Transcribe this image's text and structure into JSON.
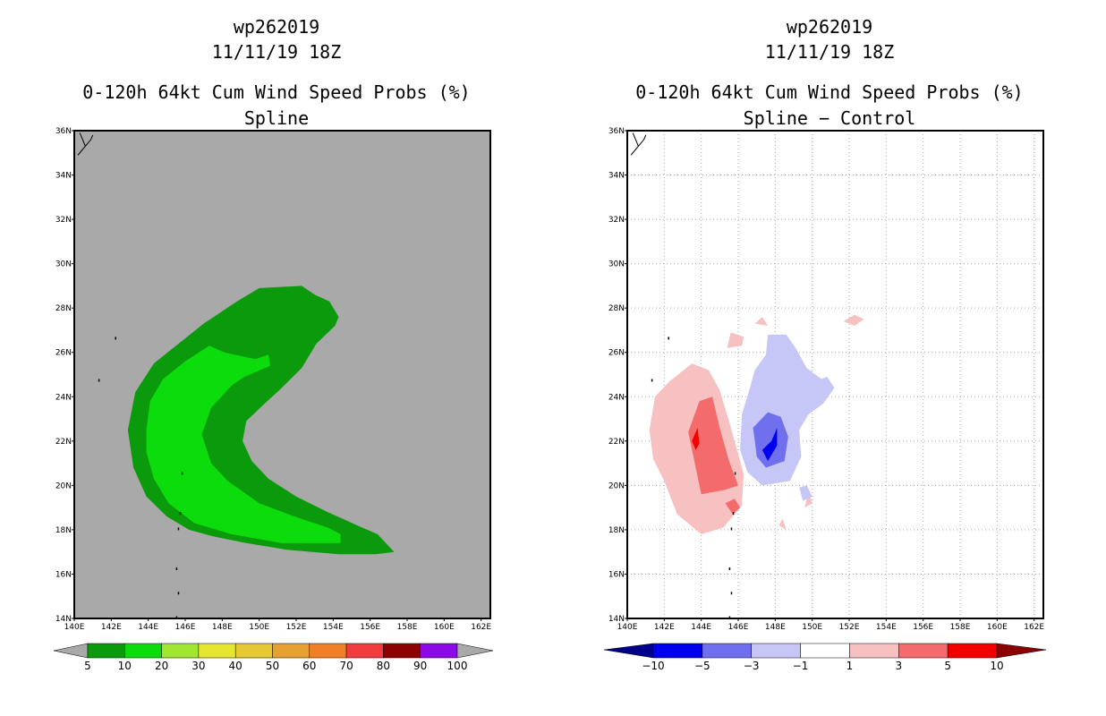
{
  "colors": {
    "land_gray": "#a9a9a9",
    "prob_5": "#0b9a0b",
    "prob_10": "#0cdc0c",
    "diff_pos1": "#f7c1c1",
    "diff_pos3": "#f46b6b",
    "diff_pos5": "#f20000",
    "diff_neg1": "#c6c6f7",
    "diff_neg3": "#7070ef",
    "diff_neg5": "#0000ee"
  },
  "panels": [
    {
      "id": "left",
      "title_line1": "wp262019",
      "title_line2": "11/11/19 18Z",
      "title_line3": "0-120h 64kt Cum Wind Speed Probs (%)",
      "title_line4": "Spline"
    },
    {
      "id": "right",
      "title_line1": "wp262019",
      "title_line2": "11/11/19 18Z",
      "title_line3": "0-120h 64kt Cum Wind Speed Probs (%)",
      "title_line4": "Spline − Control"
    }
  ],
  "chart_data": [
    {
      "type": "contour_map",
      "title": "wp262019 11/11/19 18Z 0-120h 64kt Cum Wind Speed Probs (%) Spline",
      "x_range_lon": [
        140,
        162.5
      ],
      "y_range_lat": [
        14,
        36
      ],
      "x_ticks": [
        "140E",
        "142E",
        "144E",
        "146E",
        "148E",
        "150E",
        "152E",
        "154E",
        "156E",
        "158E",
        "160E",
        "162E"
      ],
      "y_ticks": [
        "14N",
        "16N",
        "18N",
        "20N",
        "22N",
        "24N",
        "26N",
        "28N",
        "30N",
        "32N",
        "34N",
        "36N"
      ],
      "grid": false,
      "colorbar": {
        "labels": [
          "5",
          "10",
          "20",
          "30",
          "40",
          "50",
          "60",
          "70",
          "80",
          "90",
          "100"
        ],
        "colors": [
          "#a9a9a9",
          "#0b9a0b",
          "#0cdc0c",
          "#a0e632",
          "#e6e632",
          "#e6c832",
          "#e6a032",
          "#f08028",
          "#f03c3c",
          "#8c0000",
          "#8c0ae6",
          "#a9a9a9"
        ]
      },
      "contours": [
        {
          "level": 5,
          "points": [
            [
              142.9,
              22.5
            ],
            [
              143.3,
              24.2
            ],
            [
              144.3,
              25.5
            ],
            [
              145.5,
              26.3
            ],
            [
              147,
              27.3
            ],
            [
              148.8,
              28.3
            ],
            [
              150,
              28.9
            ],
            [
              152.3,
              29
            ],
            [
              153,
              28.6
            ],
            [
              153.8,
              28.3
            ],
            [
              154.3,
              27.6
            ],
            [
              154.1,
              27.2
            ],
            [
              153.1,
              26.4
            ],
            [
              152.3,
              25.3
            ],
            [
              151.1,
              24.3
            ],
            [
              150.3,
              23.7
            ],
            [
              149.3,
              22.9
            ],
            [
              149.1,
              22
            ],
            [
              149.6,
              21.1
            ],
            [
              150.5,
              20.3
            ],
            [
              152,
              19.5
            ],
            [
              153.7,
              18.8
            ],
            [
              155.3,
              18.2
            ],
            [
              156.4,
              17.8
            ],
            [
              157.3,
              17
            ],
            [
              156.3,
              16.9
            ],
            [
              154.3,
              16.9
            ],
            [
              151.5,
              17.1
            ],
            [
              149.3,
              17.4
            ],
            [
              147.5,
              17.7
            ],
            [
              146.2,
              18
            ],
            [
              145,
              18.6
            ],
            [
              143.9,
              19.5
            ],
            [
              143.2,
              20.8
            ]
          ]
        },
        {
          "level": 10,
          "points": [
            [
              143.9,
              22.5
            ],
            [
              144.1,
              23.8
            ],
            [
              144.8,
              24.8
            ],
            [
              146,
              25.6
            ],
            [
              147.3,
              26.3
            ],
            [
              148.1,
              26
            ],
            [
              149.8,
              25.7
            ],
            [
              150.5,
              25.9
            ],
            [
              150.6,
              25.4
            ],
            [
              149.2,
              24.9
            ],
            [
              148.5,
              24.5
            ],
            [
              147.4,
              23.5
            ],
            [
              146.9,
              22.3
            ],
            [
              147.4,
              21
            ],
            [
              148.3,
              20.2
            ],
            [
              150,
              19.2
            ],
            [
              151.9,
              18.6
            ],
            [
              153.7,
              18.1
            ],
            [
              154.4,
              17.8
            ],
            [
              154.4,
              17.4
            ],
            [
              151.2,
              17.4
            ],
            [
              148.5,
              17.8
            ],
            [
              146.5,
              18.3
            ],
            [
              145.1,
              19.2
            ],
            [
              144.3,
              20.3
            ],
            [
              143.9,
              21.5
            ]
          ]
        }
      ]
    },
    {
      "type": "contour_map",
      "title": "wp262019 11/11/19 18Z 0-120h 64kt Cum Wind Speed Probs (%) Spline − Control",
      "x_range_lon": [
        140,
        162.5
      ],
      "y_range_lat": [
        14,
        36
      ],
      "x_ticks": [
        "140E",
        "142E",
        "144E",
        "146E",
        "148E",
        "150E",
        "152E",
        "154E",
        "156E",
        "158E",
        "160E",
        "162E"
      ],
      "y_ticks": [
        "14N",
        "16N",
        "18N",
        "20N",
        "22N",
        "24N",
        "26N",
        "28N",
        "30N",
        "32N",
        "34N",
        "36N"
      ],
      "grid": true,
      "colorbar": {
        "labels": [
          "−10",
          "−5",
          "−3",
          "−1",
          "1",
          "3",
          "5",
          "10"
        ],
        "colors": [
          "#00008b",
          "#0000ee",
          "#7070ef",
          "#c6c6f7",
          "#ffffff",
          "#f7c1c1",
          "#f46b6b",
          "#f20000",
          "#8b0000"
        ]
      },
      "contours": [
        {
          "level": 1,
          "points": [
            [
              141.2,
              22.5
            ],
            [
              141.5,
              24
            ],
            [
              142.3,
              24.7
            ],
            [
              143.5,
              25.5
            ],
            [
              144.4,
              25.2
            ],
            [
              145,
              24.3
            ],
            [
              145.5,
              22.9
            ],
            [
              146.3,
              20.5
            ],
            [
              146.2,
              19.1
            ],
            [
              145.2,
              18.1
            ],
            [
              144,
              17.8
            ],
            [
              142.7,
              18.7
            ],
            [
              142,
              20.2
            ],
            [
              141.4,
              21.2
            ]
          ]
        },
        {
          "level": 3,
          "points": [
            [
              143.3,
              22.4
            ],
            [
              143.9,
              23.8
            ],
            [
              144.6,
              24
            ],
            [
              145,
              22.6
            ],
            [
              145.5,
              21.1
            ],
            [
              146,
              20
            ],
            [
              145.3,
              19.8
            ],
            [
              144,
              19.6
            ],
            [
              143.7,
              20.8
            ]
          ]
        },
        {
          "level": 5,
          "points": [
            [
              143.5,
              22
            ],
            [
              143.8,
              22.6
            ],
            [
              143.9,
              21.9
            ],
            [
              143.7,
              21.6
            ]
          ]
        },
        {
          "level": 3,
          "points": [
            [
              145.3,
              19.2
            ],
            [
              145.8,
              19.4
            ],
            [
              146.1,
              19
            ],
            [
              145.7,
              18.7
            ]
          ]
        },
        {
          "level": 1,
          "points": [
            [
              145.4,
              26.2
            ],
            [
              145.6,
              26.9
            ],
            [
              146.3,
              26.7
            ],
            [
              146.2,
              26.3
            ]
          ]
        },
        {
          "level": 1,
          "points": [
            [
              146.9,
              27.3
            ],
            [
              147.3,
              27.6
            ],
            [
              147.6,
              27.2
            ]
          ]
        },
        {
          "level": 1,
          "points": [
            [
              151.7,
              27.4
            ],
            [
              152.3,
              27.7
            ],
            [
              152.8,
              27.5
            ],
            [
              152.3,
              27.2
            ]
          ]
        },
        {
          "level": 1,
          "points": [
            [
              148.2,
              18.2
            ],
            [
              148.4,
              18.5
            ],
            [
              148.6,
              18
            ]
          ]
        },
        {
          "level": 1,
          "points": [
            [
              149.8,
              19.8
            ],
            [
              150,
              19.2
            ],
            [
              149.6,
              19
            ]
          ]
        },
        {
          "level": -1,
          "points": [
            [
              146.2,
              23.2
            ],
            [
              146.6,
              24.3
            ],
            [
              146.9,
              25.2
            ],
            [
              147.5,
              25.9
            ],
            [
              147.6,
              26.8
            ],
            [
              148.6,
              26.8
            ],
            [
              149.1,
              26.2
            ],
            [
              149.7,
              25.3
            ],
            [
              150.5,
              24.8
            ],
            [
              150.8,
              24.9
            ],
            [
              151.2,
              24.4
            ],
            [
              150.6,
              23.7
            ],
            [
              149.8,
              23.2
            ],
            [
              149.3,
              22.5
            ],
            [
              149.4,
              21.3
            ],
            [
              148.8,
              20.2
            ],
            [
              147.3,
              20
            ],
            [
              146.5,
              20.6
            ],
            [
              146.1,
              21.6
            ]
          ]
        },
        {
          "level": -3,
          "points": [
            [
              146.8,
              22.6
            ],
            [
              147.6,
              23.3
            ],
            [
              148.3,
              23.1
            ],
            [
              148.7,
              22.2
            ],
            [
              148.5,
              21.1
            ],
            [
              147.5,
              20.8
            ],
            [
              147,
              21.3
            ],
            [
              146.9,
              22
            ]
          ]
        },
        {
          "level": -5,
          "points": [
            [
              147.3,
              21.6
            ],
            [
              147.8,
              22
            ],
            [
              148.1,
              22.6
            ],
            [
              148.1,
              21.8
            ],
            [
              147.6,
              21.1
            ]
          ]
        },
        {
          "level": -1,
          "points": [
            [
              149.3,
              19.9
            ],
            [
              149.7,
              20
            ],
            [
              150,
              19.5
            ],
            [
              149.5,
              19.3
            ]
          ]
        }
      ]
    }
  ]
}
